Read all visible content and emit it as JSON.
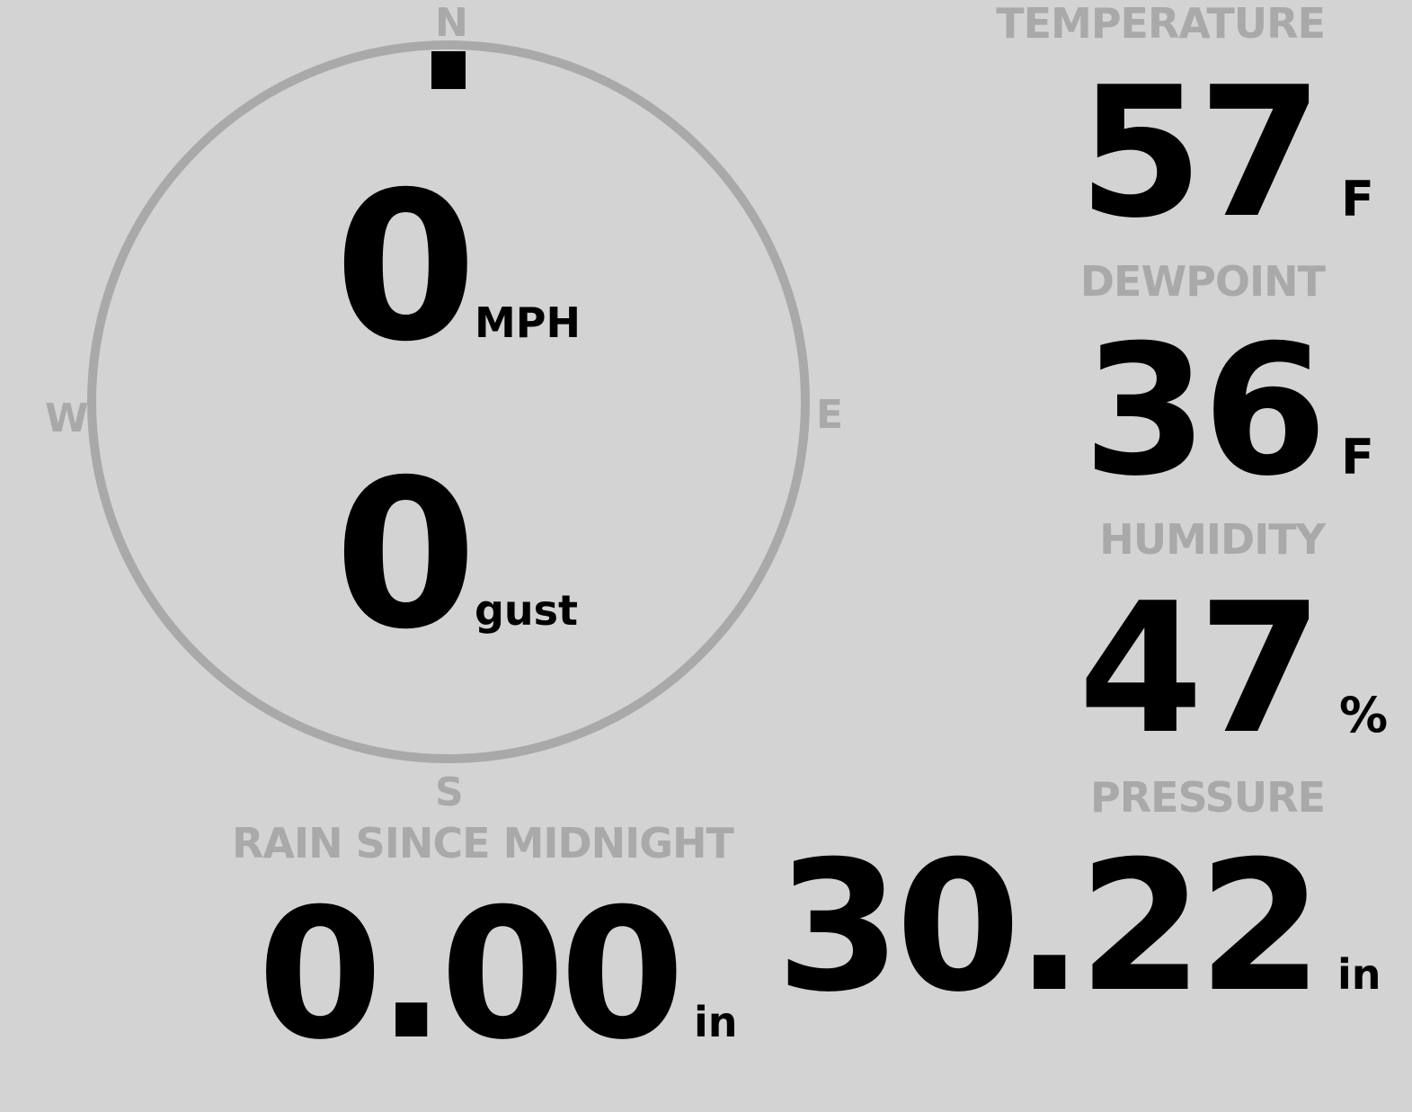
{
  "wind": {
    "compass": {
      "north": "N",
      "east": "E",
      "south": "S",
      "west": "W"
    },
    "direction_degrees": 0,
    "speed": "0",
    "speed_unit": "MPH",
    "gust": "0",
    "gust_unit": "gust"
  },
  "rain": {
    "label": "RAIN SINCE MIDNIGHT",
    "value": "0.00",
    "unit": "in"
  },
  "temperature": {
    "label": "TEMPERATURE",
    "value": "57",
    "unit": "F"
  },
  "dewpoint": {
    "label": "DEWPOINT",
    "value": "36",
    "unit": "F"
  },
  "humidity": {
    "label": "HUMIDITY",
    "value": "47",
    "unit": "%"
  },
  "pressure": {
    "label": "PRESSURE",
    "value": "30.22",
    "unit": "in"
  },
  "colors": {
    "background": "#d3d3d3",
    "muted": "#a9a9a9",
    "value": "#000000"
  }
}
